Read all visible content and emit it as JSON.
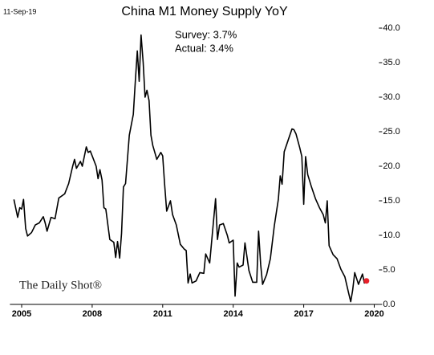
{
  "chart_data": {
    "type": "line",
    "title": "China M1 Money Supply YoY",
    "date_label": "11-Sep-19",
    "annotations": [
      "Survey: 3.7%",
      "Actual:  3.4%"
    ],
    "watermark": "The Daily Shot®",
    "x": [
      2004.67,
      2004.83,
      2004.92,
      2005.0,
      2005.08,
      2005.17,
      2005.25,
      2005.42,
      2005.58,
      2005.75,
      2005.92,
      2006.0,
      2006.08,
      2006.25,
      2006.42,
      2006.58,
      2006.83,
      2007.0,
      2007.17,
      2007.25,
      2007.33,
      2007.5,
      2007.58,
      2007.75,
      2007.83,
      2007.92,
      2008.0,
      2008.17,
      2008.25,
      2008.33,
      2008.42,
      2008.5,
      2008.58,
      2008.75,
      2008.92,
      2009.0,
      2009.08,
      2009.17,
      2009.25,
      2009.33,
      2009.42,
      2009.58,
      2009.75,
      2009.83,
      2009.92,
      2010.0,
      2010.08,
      2010.17,
      2010.25,
      2010.33,
      2010.42,
      2010.5,
      2010.58,
      2010.75,
      2010.92,
      2011.0,
      2011.08,
      2011.17,
      2011.33,
      2011.42,
      2011.58,
      2011.75,
      2011.92,
      2012.0,
      2012.08,
      2012.17,
      2012.25,
      2012.42,
      2012.58,
      2012.75,
      2012.83,
      2013.0,
      2013.08,
      2013.25,
      2013.33,
      2013.42,
      2013.58,
      2013.75,
      2013.83,
      2014.0,
      2014.08,
      2014.17,
      2014.25,
      2014.42,
      2014.5,
      2014.67,
      2014.83,
      2015.0,
      2015.08,
      2015.17,
      2015.25,
      2015.42,
      2015.58,
      2015.75,
      2015.92,
      2016.0,
      2016.08,
      2016.17,
      2016.33,
      2016.5,
      2016.58,
      2016.67,
      2016.83,
      2016.92,
      2017.0,
      2017.08,
      2017.17,
      2017.33,
      2017.5,
      2017.67,
      2017.83,
      2017.92,
      2018.0,
      2018.08,
      2018.25,
      2018.42,
      2018.58,
      2018.75,
      2018.92,
      2019.0,
      2019.08,
      2019.17,
      2019.33,
      2019.5,
      2019.58,
      2019.67
    ],
    "series": [
      {
        "name": "China M1 Money Supply YoY",
        "color": "#000000",
        "values": [
          15.2,
          12.6,
          14.0,
          13.8,
          15.2,
          11.0,
          9.9,
          10.4,
          11.5,
          11.8,
          12.7,
          11.8,
          10.6,
          12.6,
          12.4,
          15.4,
          16.0,
          17.5,
          20.0,
          21.0,
          19.7,
          20.7,
          20.0,
          22.8,
          22.0,
          22.2,
          21.5,
          20.0,
          18.2,
          19.5,
          18.0,
          14.0,
          13.8,
          9.4,
          9.0,
          6.8,
          9.1,
          6.7,
          10.3,
          17.0,
          17.5,
          24.5,
          27.5,
          32.0,
          36.7,
          32.3,
          39.0,
          35.0,
          30.0,
          31.0,
          29.5,
          24.5,
          23.0,
          21.0,
          22.0,
          21.5,
          17.5,
          13.5,
          15.0,
          13.0,
          11.5,
          8.7,
          8.0,
          7.8,
          3.1,
          4.4,
          3.1,
          3.4,
          4.6,
          4.5,
          7.3,
          6.0,
          9.0,
          15.3,
          9.4,
          11.5,
          11.7,
          10.0,
          8.9,
          9.3,
          1.2,
          6.0,
          5.4,
          5.7,
          8.9,
          4.9,
          3.2,
          3.2,
          10.6,
          5.7,
          2.9,
          4.3,
          6.6,
          11.4,
          15.2,
          18.6,
          17.4,
          22.1,
          23.7,
          25.4,
          25.3,
          24.7,
          22.7,
          21.4,
          14.5,
          21.4,
          18.8,
          17.0,
          15.3,
          14.0,
          13.0,
          11.8,
          15.0,
          8.5,
          7.2,
          6.6,
          5.1,
          4.0,
          1.5,
          0.4,
          2.0,
          4.6,
          2.9,
          4.4,
          3.1,
          3.4
        ]
      }
    ],
    "last_point_color": "#e8202a",
    "xlim": [
      2004.5,
      2020.2
    ],
    "xticks": [
      2005,
      2008,
      2011,
      2014,
      2017,
      2020
    ],
    "ylim": [
      0,
      40
    ],
    "yticks": [
      {
        "value": 0,
        "label": "0.0"
      },
      {
        "value": 5,
        "label": "5.0"
      },
      {
        "value": 10,
        "label": "10.0"
      },
      {
        "value": 15,
        "label": "15.0"
      },
      {
        "value": 20,
        "label": "20.0"
      },
      {
        "value": 25,
        "label": "25.0"
      },
      {
        "value": 30,
        "label": "30.0"
      },
      {
        "value": 35,
        "label": "35.0"
      },
      {
        "value": 40,
        "label": "40.0"
      }
    ],
    "y_axis_side": "right",
    "grid": false
  }
}
